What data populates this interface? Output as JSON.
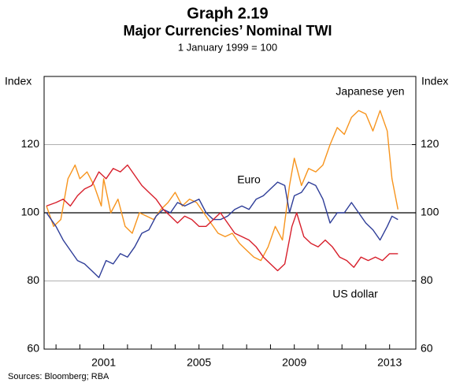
{
  "chart_data": {
    "type": "line",
    "title": "Graph 2.19",
    "subtitle": "Major Currencies’ Nominal TWI",
    "note": "1 January 1999 = 100",
    "ylabel": "Index",
    "y2label": "Index",
    "source": "Sources: Bloomberg; RBA",
    "xlim": [
      1998.5,
      2014.1
    ],
    "xticks": [
      2001,
      2005,
      2009,
      2013
    ],
    "xminorticks": [
      1999,
      2000,
      2002,
      2003,
      2004,
      2006,
      2007,
      2008,
      2010,
      2011,
      2012
    ],
    "ylim": [
      60,
      140
    ],
    "yticks": [
      60,
      80,
      100,
      120
    ],
    "y2lim": [
      60,
      140
    ],
    "y2ticks": [
      60,
      80,
      100,
      120
    ],
    "hline": 100,
    "grid": true,
    "series": [
      {
        "name": "Japanese yen",
        "color": "#f7941d",
        "x": [
          1998.6,
          1998.9,
          1999.2,
          1999.5,
          1999.8,
          2000.0,
          2000.3,
          2000.6,
          2000.9,
          2001.0,
          2001.3,
          2001.6,
          2001.9,
          2002.2,
          2002.5,
          2002.8,
          2003.1,
          2003.4,
          2003.7,
          2004.0,
          2004.3,
          2004.6,
          2004.9,
          2005.2,
          2005.5,
          2005.8,
          2006.1,
          2006.4,
          2006.7,
          2007.0,
          2007.3,
          2007.6,
          2007.9,
          2008.2,
          2008.5,
          2008.8,
          2009.0,
          2009.3,
          2009.6,
          2009.9,
          2010.2,
          2010.5,
          2010.8,
          2011.1,
          2011.4,
          2011.7,
          2012.0,
          2012.3,
          2012.6,
          2012.9,
          2013.1,
          2013.35
        ],
        "values": [
          102,
          96,
          98,
          110,
          114,
          110,
          112,
          108,
          102,
          110,
          100,
          104,
          96,
          94,
          100,
          99,
          98,
          101,
          103,
          106,
          102,
          104,
          103,
          100,
          97,
          94,
          93,
          94,
          91,
          89,
          87,
          86,
          90,
          96,
          92,
          108,
          116,
          108,
          113,
          112,
          114,
          120,
          125,
          123,
          128,
          130,
          129,
          124,
          130,
          124,
          110,
          101
        ]
      },
      {
        "name": "Euro",
        "color": "#2e3d98",
        "x": [
          1998.6,
          1999.0,
          1999.3,
          1999.6,
          1999.9,
          2000.2,
          2000.5,
          2000.8,
          2001.1,
          2001.4,
          2001.7,
          2002.0,
          2002.3,
          2002.6,
          2002.9,
          2003.2,
          2003.5,
          2003.8,
          2004.1,
          2004.4,
          2004.7,
          2005.0,
          2005.3,
          2005.6,
          2005.9,
          2006.2,
          2006.5,
          2006.8,
          2007.1,
          2007.4,
          2007.7,
          2008.0,
          2008.3,
          2008.6,
          2008.8,
          2009.0,
          2009.3,
          2009.6,
          2009.9,
          2010.2,
          2010.5,
          2010.8,
          2011.1,
          2011.4,
          2011.7,
          2012.0,
          2012.3,
          2012.6,
          2012.9,
          2013.1,
          2013.35
        ],
        "values": [
          100,
          96,
          92,
          89,
          86,
          85,
          83,
          81,
          86,
          85,
          88,
          87,
          90,
          94,
          95,
          99,
          101,
          100,
          103,
          102,
          103,
          104,
          100,
          98,
          98,
          99,
          101,
          102,
          101,
          104,
          105,
          107,
          109,
          108,
          100,
          105,
          106,
          109,
          108,
          104,
          97,
          100,
          100,
          103,
          100,
          97,
          95,
          92,
          96,
          99,
          98
        ]
      },
      {
        "name": "US dollar",
        "color": "#d71f2b",
        "x": [
          1998.6,
          1999.0,
          1999.3,
          1999.6,
          1999.9,
          2000.2,
          2000.5,
          2000.8,
          2001.1,
          2001.4,
          2001.7,
          2002.0,
          2002.3,
          2002.6,
          2002.9,
          2003.2,
          2003.5,
          2003.8,
          2004.1,
          2004.4,
          2004.7,
          2005.0,
          2005.3,
          2005.6,
          2005.9,
          2006.2,
          2006.5,
          2006.8,
          2007.1,
          2007.4,
          2007.7,
          2008.0,
          2008.3,
          2008.6,
          2008.9,
          2009.1,
          2009.4,
          2009.7,
          2010.0,
          2010.3,
          2010.6,
          2010.9,
          2011.2,
          2011.5,
          2011.8,
          2012.1,
          2012.4,
          2012.7,
          2013.0,
          2013.35
        ],
        "values": [
          102,
          103,
          104,
          102,
          105,
          107,
          108,
          112,
          110,
          113,
          112,
          114,
          111,
          108,
          106,
          104,
          101,
          99,
          97,
          99,
          98,
          96,
          96,
          98,
          100,
          97,
          94,
          93,
          92,
          90,
          87,
          85,
          83,
          85,
          96,
          100,
          93,
          91,
          90,
          92,
          90,
          87,
          86,
          84,
          87,
          86,
          87,
          86,
          88,
          88
        ]
      }
    ]
  }
}
